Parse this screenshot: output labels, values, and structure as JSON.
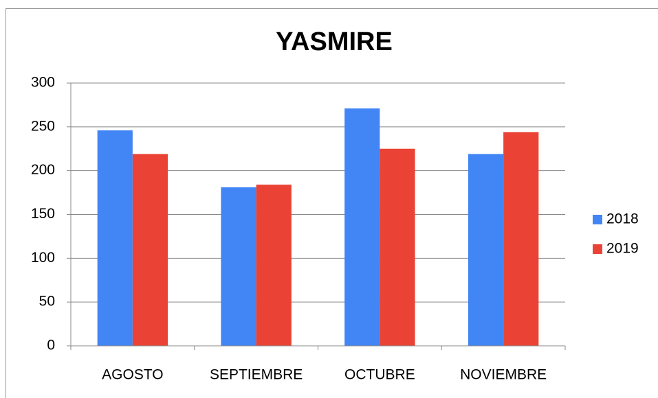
{
  "chart_data": {
    "type": "bar",
    "title": "YASMIRE",
    "categories": [
      "AGOSTO",
      "SEPTIEMBRE",
      "OCTUBRE",
      "NOVIEMBRE"
    ],
    "series": [
      {
        "name": "2018",
        "color": "#4285f4",
        "values": [
          246,
          181,
          271,
          219
        ]
      },
      {
        "name": "2019",
        "color": "#ea4335",
        "values": [
          219,
          184,
          225,
          244
        ]
      }
    ],
    "ylim": [
      0,
      300
    ],
    "yticks": [
      0,
      50,
      100,
      150,
      200,
      250,
      300
    ],
    "grid": true,
    "legend": "right"
  }
}
